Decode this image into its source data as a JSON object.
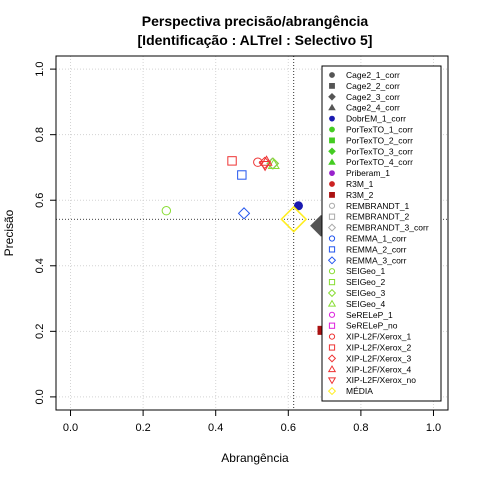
{
  "chart_data": {
    "type": "scatter",
    "title": "Perspectiva precisão/abrangência",
    "subtitle": "[Identificação : ALTrel : Selectivo 5]",
    "xlabel": "Abrangência",
    "ylabel": "Precisão",
    "xlim": [
      -0.04,
      1.04
    ],
    "ylim": [
      -0.04,
      1.04
    ],
    "xticks": [
      "0.0",
      "0.2",
      "0.4",
      "0.6",
      "0.8",
      "1.0"
    ],
    "yticks": [
      "0.0",
      "0.2",
      "0.4",
      "0.6",
      "0.8",
      "1.0"
    ],
    "grid": true,
    "legend_position": "right",
    "reference_lines": {
      "x": 0.615,
      "y": 0.542
    },
    "series": [
      {
        "name": "Cage2_1_corr",
        "symbol": "circle-filled",
        "color": "#555555",
        "points": []
      },
      {
        "name": "Cage2_2_corr",
        "symbol": "square-filled",
        "color": "#555555",
        "points": []
      },
      {
        "name": "Cage2_3_corr",
        "symbol": "diamond-filled",
        "color": "#555555",
        "points": [
          [
            0.69,
            0.522
          ]
        ]
      },
      {
        "name": "Cage2_4_corr",
        "symbol": "triangle-filled",
        "color": "#555555",
        "points": [
          [
            0.705,
            0.54
          ]
        ]
      },
      {
        "name": "DobrEM_1_corr",
        "symbol": "circle-filled",
        "color": "#1a1ab0",
        "points": [
          [
            0.628,
            0.583
          ]
        ]
      },
      {
        "name": "PorTexTO_1_corr",
        "symbol": "circle-filled",
        "color": "#44cc22",
        "points": []
      },
      {
        "name": "PorTexTO_2_corr",
        "symbol": "square-filled",
        "color": "#44cc22",
        "points": []
      },
      {
        "name": "PorTexTO_3_corr",
        "symbol": "diamond-filled",
        "color": "#44cc22",
        "points": []
      },
      {
        "name": "PorTexTO_4_corr",
        "symbol": "triangle-filled",
        "color": "#44cc22",
        "points": []
      },
      {
        "name": "Priberam_1",
        "symbol": "circle-filled",
        "color": "#9922cc",
        "points": []
      },
      {
        "name": "R3M_1",
        "symbol": "circle-filled",
        "color": "#cc2222",
        "points": []
      },
      {
        "name": "R3M_2",
        "symbol": "square-filled",
        "color": "#aa1111",
        "points": [
          [
            0.693,
            0.203
          ]
        ]
      },
      {
        "name": "REMBRANDT_1",
        "symbol": "circle-open",
        "color": "#aaaaaa",
        "points": []
      },
      {
        "name": "REMBRANDT_2",
        "symbol": "square-open",
        "color": "#aaaaaa",
        "points": []
      },
      {
        "name": "REMBRANDT_3_corr",
        "symbol": "diamond-open",
        "color": "#aaaaaa",
        "points": [
          [
            0.556,
            0.712
          ]
        ]
      },
      {
        "name": "REMMA_1_corr",
        "symbol": "circle-open",
        "color": "#2255ee",
        "points": []
      },
      {
        "name": "REMMA_2_corr",
        "symbol": "square-open",
        "color": "#2255ee",
        "points": [
          [
            0.472,
            0.677
          ]
        ]
      },
      {
        "name": "REMMA_3_corr",
        "symbol": "diamond-open",
        "color": "#2255ee",
        "points": [
          [
            0.478,
            0.56
          ]
        ]
      },
      {
        "name": "SEIGeo_1",
        "symbol": "circle-open",
        "color": "#88dd33",
        "points": [
          [
            0.264,
            0.568
          ]
        ]
      },
      {
        "name": "SEIGeo_2",
        "symbol": "square-open",
        "color": "#88dd33",
        "points": []
      },
      {
        "name": "SEIGeo_3",
        "symbol": "diamond-open",
        "color": "#88dd33",
        "points": [
          [
            0.558,
            0.712
          ]
        ]
      },
      {
        "name": "SEIGeo_4",
        "symbol": "triangle-open",
        "color": "#88dd33",
        "points": [
          [
            0.56,
            0.708
          ]
        ]
      },
      {
        "name": "SeRELeP_1",
        "symbol": "circle-open",
        "color": "#dd22dd",
        "points": []
      },
      {
        "name": "SeRELeP_no",
        "symbol": "square-open",
        "color": "#dd22dd",
        "points": []
      },
      {
        "name": "XIP-L2F/Xerox_1",
        "symbol": "circle-open",
        "color": "#ee3333",
        "points": [
          [
            0.516,
            0.716
          ]
        ]
      },
      {
        "name": "XIP-L2F/Xerox_2",
        "symbol": "square-open",
        "color": "#ee3333",
        "points": [
          [
            0.445,
            0.72
          ]
        ]
      },
      {
        "name": "XIP-L2F/Xerox_3",
        "symbol": "diamond-open",
        "color": "#ee3333",
        "points": [
          [
            0.535,
            0.714
          ]
        ]
      },
      {
        "name": "XIP-L2F/Xerox_4",
        "symbol": "triangle-open",
        "color": "#ee3333",
        "points": [
          [
            0.54,
            0.718
          ]
        ]
      },
      {
        "name": "XIP-L2F/Xerox_no",
        "symbol": "triangle-down-open",
        "color": "#ee3333",
        "points": [
          [
            0.536,
            0.707
          ]
        ]
      },
      {
        "name": "MÉDIA",
        "symbol": "diamond-open-large",
        "color": "#ffee22",
        "points": [
          [
            0.615,
            0.542
          ]
        ]
      }
    ]
  }
}
